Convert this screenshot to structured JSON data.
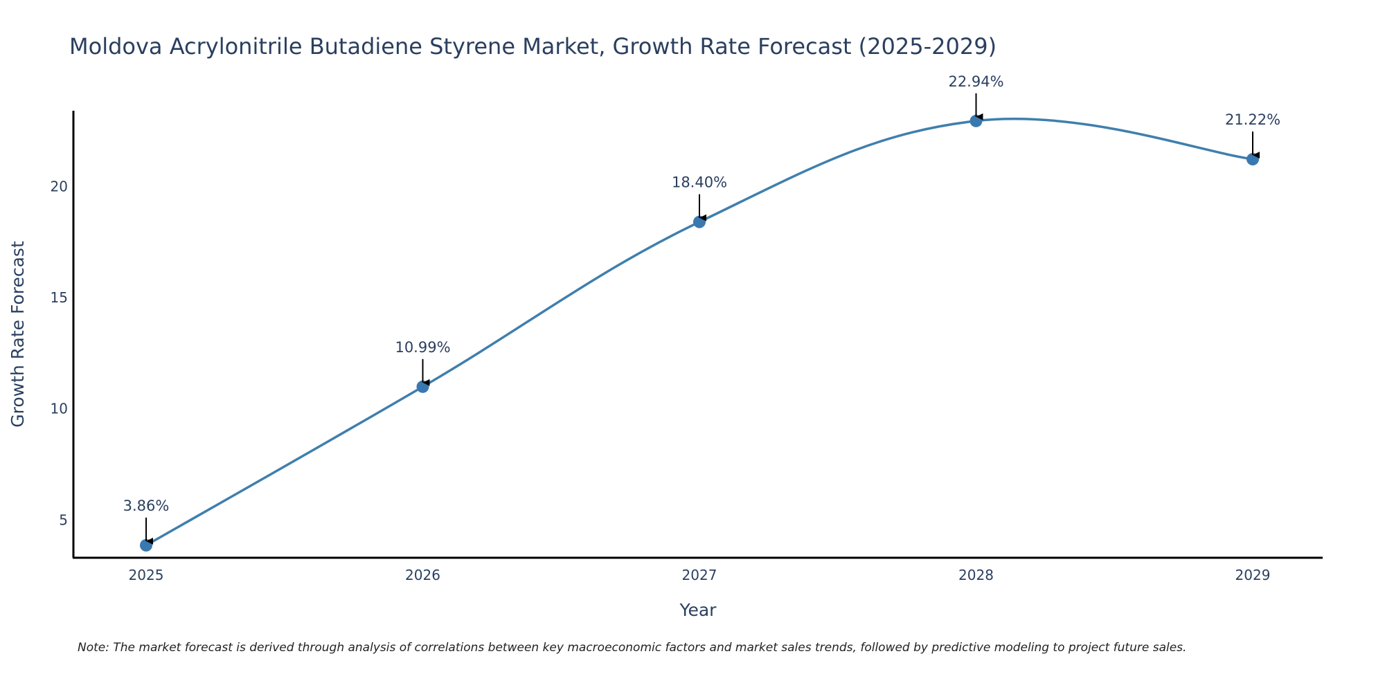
{
  "chart_data": {
    "type": "line",
    "title": "Moldova Acrylonitrile Butadiene Styrene Market, Growth Rate Forecast (2025-2029)",
    "xlabel": "Year",
    "ylabel": "Growth Rate Forecast",
    "categories": [
      "2025",
      "2026",
      "2027",
      "2028",
      "2029"
    ],
    "values": [
      3.86,
      10.99,
      18.4,
      22.94,
      21.22
    ],
    "data_labels": [
      "3.86%",
      "10.99%",
      "18.40%",
      "22.94%",
      "21.22%"
    ],
    "yticks": [
      5,
      10,
      15,
      20
    ],
    "ylim": [
      3.3,
      23.4
    ],
    "grid": false,
    "line_smoothing": "spline",
    "colors": {
      "line": "#3f7fad",
      "marker": "#3a78b0",
      "arrow": "#000000",
      "axis": "#000000"
    }
  },
  "note": "Note: The market forecast is derived through analysis of correlations between key macroeconomic factors and market sales trends, followed by predictive modeling to project future sales."
}
